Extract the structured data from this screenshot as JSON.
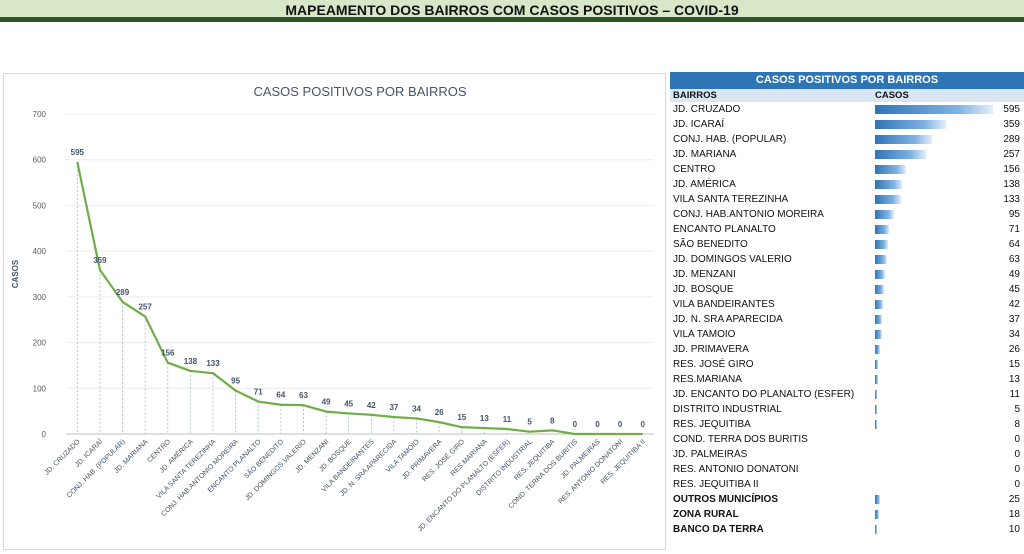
{
  "banner": {
    "title": "MAPEAMENTO DOS BAIRROS COM CASOS POSITIVOS – COVID-19"
  },
  "chart_data": {
    "type": "line",
    "title": "CASOS POSITIVOS POR BAIRROS",
    "ylabel": "CASOS",
    "xlabel": "",
    "ylim": [
      0,
      700
    ],
    "yticks": [
      0,
      100,
      200,
      300,
      400,
      500,
      600,
      700
    ],
    "grid": true,
    "color": "#70ad47",
    "categories": [
      "JD. CRUZADO",
      "JD. ICARAÍ",
      "CONJ. HAB. (POPULAR)",
      "JD. MARIANA",
      "CENTRO",
      "JD. AMÉRICA",
      "VILA SANTA TEREZINHA",
      "CONJ. HAB.ANTONIO MOREIRA",
      "ENCANTO PLANALTO",
      "SÃO BENEDITO",
      "JD. DOMINGOS VALERIO",
      "JD. MENZANI",
      "JD. BOSQUE",
      "VILA BANDEIRANTES",
      "JD. N. SRA APARECIDA",
      "VILA TAMOIO",
      "JD. PRIMAVERA",
      "RES. JOSÉ GIRO",
      "RES.MARIANA",
      "JD. ENCANTO DO PLANALTO (ESFER)",
      "DISTRITO INDUSTRIAL",
      "RES. JEQUITIBA",
      "COND. TERRA DOS BURITIS",
      "JD. PALMEIRAS",
      "RES. ANTONIO DONATONI",
      "RES. JEQUITIBA II"
    ],
    "values": [
      595,
      359,
      289,
      257,
      156,
      138,
      133,
      95,
      71,
      64,
      63,
      49,
      45,
      42,
      37,
      34,
      26,
      15,
      13,
      11,
      5,
      8,
      0,
      0,
      0,
      0
    ],
    "data_labels": [
      "595",
      "359",
      "289",
      "257",
      "156",
      "138",
      "133",
      "95",
      "71",
      "64",
      "63",
      "49",
      "45",
      "42",
      "37",
      "34",
      "26",
      "15",
      "13",
      "11",
      "5",
      "8",
      "0",
      "0",
      "0",
      "0"
    ]
  },
  "table": {
    "title": "CASOS POSITIVOS POR BAIRROS",
    "col_bairros": "BAIRROS",
    "col_casos": "CASOS",
    "max": 595,
    "rows": [
      {
        "name": "JD. CRUZADO",
        "value": 595,
        "label": "595",
        "bold": false
      },
      {
        "name": "JD. ICARAÍ",
        "value": 359,
        "label": "359",
        "bold": false
      },
      {
        "name": "CONJ. HAB. (POPULAR)",
        "value": 289,
        "label": "289",
        "bold": false
      },
      {
        "name": "JD. MARIANA",
        "value": 257,
        "label": "257",
        "bold": false
      },
      {
        "name": "CENTRO",
        "value": 156,
        "label": "156",
        "bold": false
      },
      {
        "name": "JD. AMÉRICA",
        "value": 138,
        "label": "138",
        "bold": false
      },
      {
        "name": "VILA SANTA TEREZINHA",
        "value": 133,
        "label": "133",
        "bold": false
      },
      {
        "name": "CONJ. HAB.ANTONIO MOREIRA",
        "value": 95,
        "label": "95",
        "bold": false
      },
      {
        "name": "ENCANTO PLANALTO",
        "value": 71,
        "label": "71",
        "bold": false
      },
      {
        "name": "SÃO BENEDITO",
        "value": 64,
        "label": "64",
        "bold": false
      },
      {
        "name": "JD. DOMINGOS VALERIO",
        "value": 63,
        "label": "63",
        "bold": false
      },
      {
        "name": "JD. MENZANI",
        "value": 49,
        "label": "49",
        "bold": false
      },
      {
        "name": "JD. BOSQUE",
        "value": 45,
        "label": "45",
        "bold": false
      },
      {
        "name": "VILA BANDEIRANTES",
        "value": 42,
        "label": "42",
        "bold": false
      },
      {
        "name": "JD. N. SRA APARECIDA",
        "value": 37,
        "label": "37",
        "bold": false
      },
      {
        "name": "VILA TAMOIO",
        "value": 34,
        "label": "34",
        "bold": false
      },
      {
        "name": "JD. PRIMAVERA",
        "value": 26,
        "label": "26",
        "bold": false
      },
      {
        "name": "RES. JOSÉ GIRO",
        "value": 15,
        "label": "15",
        "bold": false
      },
      {
        "name": "RES.MARIANA",
        "value": 13,
        "label": "13",
        "bold": false
      },
      {
        "name": "JD. ENCANTO DO PLANALTO (ESFER)",
        "value": 11,
        "label": "11",
        "bold": false
      },
      {
        "name": "DISTRITO INDUSTRIAL",
        "value": 5,
        "label": "5",
        "bold": false
      },
      {
        "name": "RES. JEQUITIBA",
        "value": 8,
        "label": "8",
        "bold": false
      },
      {
        "name": "COND. TERRA DOS BURITIS",
        "value": 0,
        "label": "0",
        "bold": false
      },
      {
        "name": "JD. PALMEIRAS",
        "value": 0,
        "label": "0",
        "bold": false
      },
      {
        "name": "RES. ANTONIO DONATONI",
        "value": 0,
        "label": "0",
        "bold": false
      },
      {
        "name": "RES. JEQUITIBA II",
        "value": 0,
        "label": "0",
        "bold": false
      },
      {
        "name": "OUTROS MUNICÍPIOS",
        "value": 25,
        "label": "25",
        "bold": true
      },
      {
        "name": "ZONA RURAL",
        "value": 18,
        "label": "18",
        "bold": true
      },
      {
        "name": "BANCO DA TERRA",
        "value": 10,
        "label": "10",
        "bold": true
      }
    ]
  }
}
